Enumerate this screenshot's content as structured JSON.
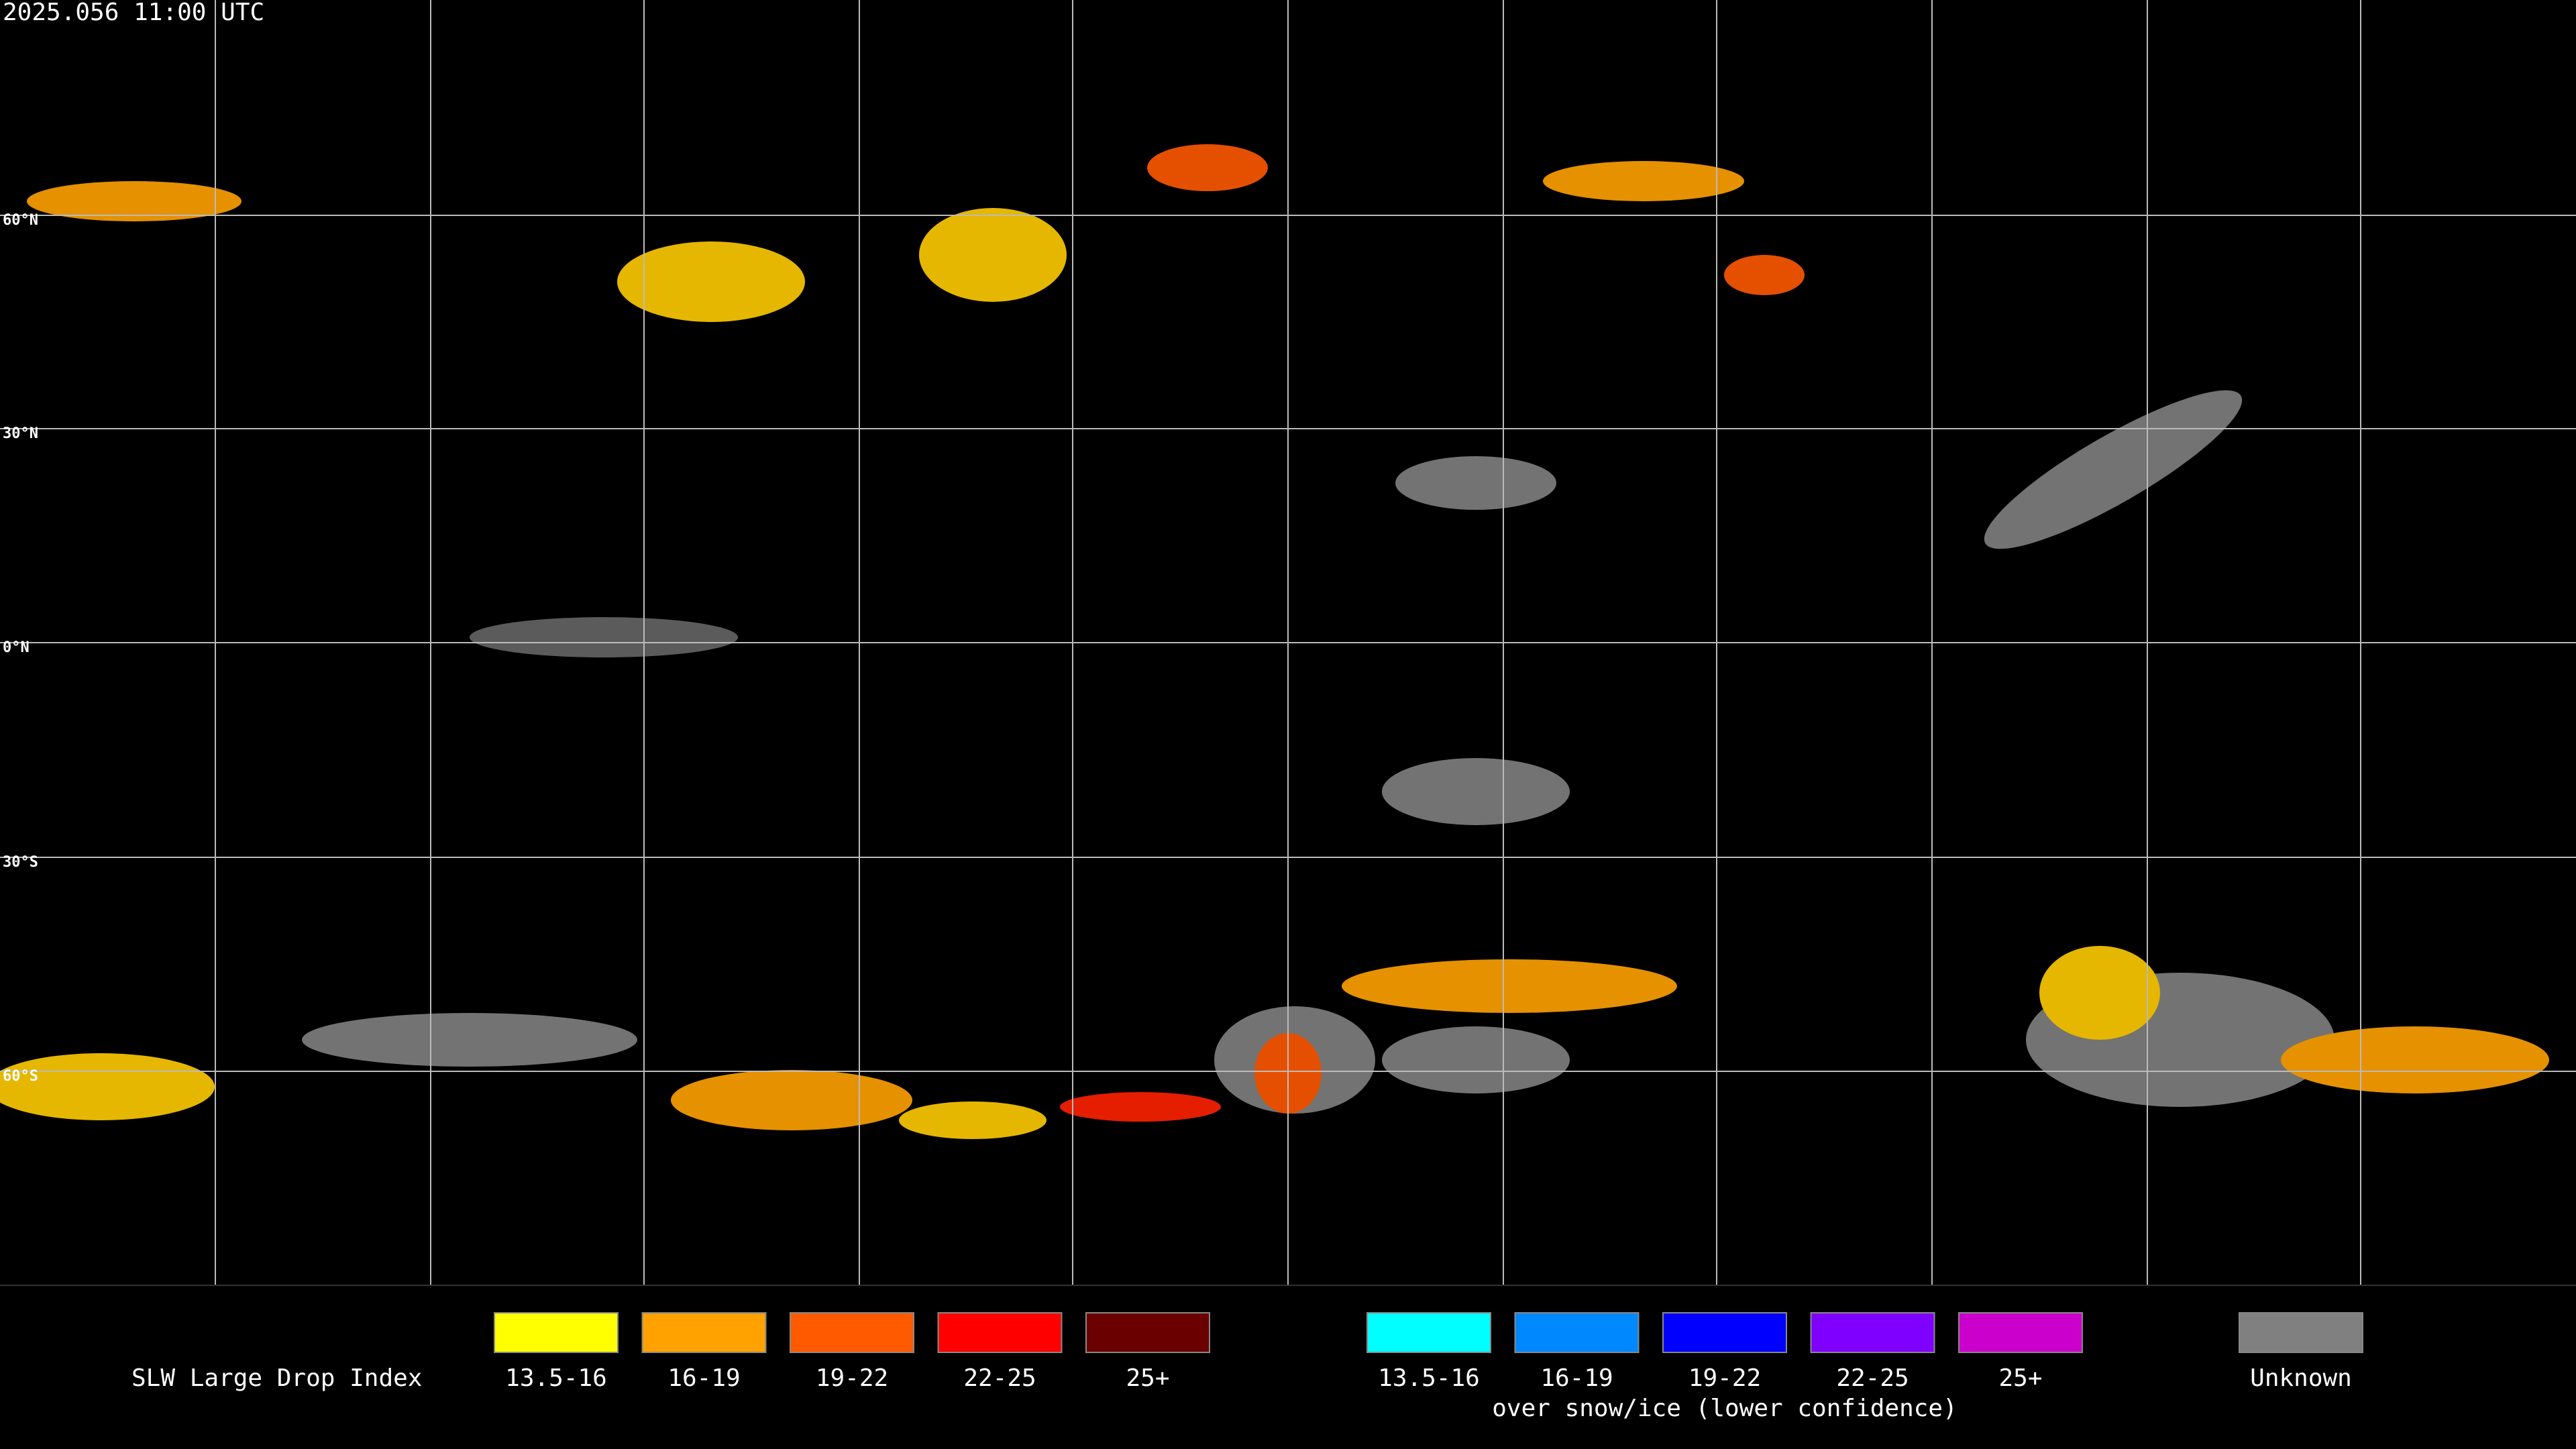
{
  "header": {
    "timestamp": "2025.056 11:00 UTC"
  },
  "map": {
    "latitude_labels": [
      "60°N",
      "30°N",
      "0°N",
      "30°S",
      "60°S"
    ]
  },
  "legend": {
    "title": "SLW Large Drop Index",
    "groups": [
      {
        "items": [
          {
            "label": "13.5-16",
            "color": "#ffff00"
          },
          {
            "label": "16-19",
            "color": "#ffa200"
          },
          {
            "label": "19-22",
            "color": "#ff5a00"
          },
          {
            "label": "22-25",
            "color": "#ff0000"
          },
          {
            "label": "25+",
            "color": "#6a0000"
          }
        ]
      },
      {
        "caption": "over snow/ice (lower confidence)",
        "items": [
          {
            "label": "13.5-16",
            "color": "#00ffff"
          },
          {
            "label": "16-19",
            "color": "#0088ff"
          },
          {
            "label": "19-22",
            "color": "#0000ff"
          },
          {
            "label": "22-25",
            "color": "#8000ff"
          },
          {
            "label": "25+",
            "color": "#cc00cc"
          }
        ]
      },
      {
        "items": [
          {
            "label": "Unknown",
            "color": "#808080"
          }
        ]
      }
    ]
  }
}
